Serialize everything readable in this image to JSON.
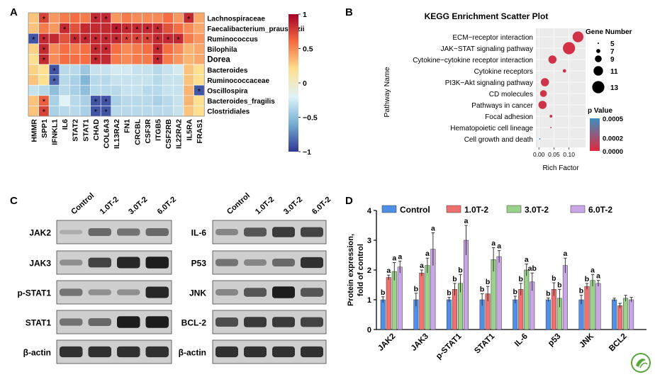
{
  "panel_letters": [
    "A",
    "B",
    "C",
    "D"
  ],
  "chart_data": [
    {
      "type": "heatmap",
      "panel": "A",
      "columns": [
        "HMMR",
        "SPP1",
        "IFNKL1",
        "IL6",
        "STAT2",
        "STAT1",
        "CHAD",
        "COL6A3",
        "IL13RA2",
        "FN1",
        "CRCBL",
        "CSF3R",
        "ITGB5",
        "CSF2RB",
        "IL22RA2",
        "IL5RA",
        "FRAS1"
      ],
      "rows": [
        "Lachnospiraceae",
        "Faecalibacterium_prausnitzii",
        "Ruminococcus",
        "Bilophila",
        "Dorea",
        "Bacteroides",
        "Ruminococcaceae",
        "Oscillospira",
        "Bacteroides_fragilis",
        "Clostridiales"
      ],
      "values": [
        [
          0.3,
          0.75,
          0.45,
          0.55,
          0.6,
          0.55,
          0.85,
          0.85,
          0.45,
          0.55,
          0.5,
          0.5,
          0.5,
          0.6,
          0.45,
          0.85,
          0.4
        ],
        [
          0.3,
          0.55,
          0.45,
          0.85,
          0.7,
          0.85,
          0.85,
          0.85,
          0.9,
          0.85,
          0.85,
          0.85,
          0.85,
          0.7,
          0.6,
          0.5,
          0.4
        ],
        [
          -0.9,
          0.85,
          0.85,
          0.7,
          0.85,
          0.85,
          0.85,
          0.85,
          0.85,
          0.75,
          0.75,
          0.75,
          0.85,
          0.85,
          0.85,
          0.55,
          0.45
        ],
        [
          0.25,
          0.85,
          0.5,
          0.6,
          0.55,
          0.6,
          0.85,
          0.85,
          0.6,
          0.5,
          0.55,
          0.6,
          0.85,
          0.6,
          0.5,
          0.35,
          0.4
        ],
        [
          0.2,
          0.85,
          0.5,
          0.6,
          0.6,
          0.6,
          0.85,
          0.85,
          0.55,
          0.5,
          0.55,
          0.55,
          0.85,
          0.55,
          0.45,
          0.35,
          0.4
        ],
        [
          0.25,
          0.2,
          -0.9,
          -0.35,
          -0.35,
          -0.45,
          -0.3,
          -0.3,
          -0.25,
          -0.25,
          -0.3,
          -0.3,
          -0.35,
          -0.3,
          -0.25,
          0.3,
          0.2
        ],
        [
          0.3,
          0.2,
          -0.85,
          -0.35,
          -0.4,
          -0.55,
          -0.35,
          -0.35,
          -0.3,
          -0.3,
          -0.3,
          -0.3,
          -0.35,
          -0.3,
          -0.3,
          0.3,
          0.2
        ],
        [
          -0.3,
          -0.35,
          -0.5,
          -0.35,
          -0.4,
          -0.5,
          -0.35,
          -0.35,
          -0.35,
          -0.3,
          -0.3,
          -0.35,
          -0.35,
          -0.3,
          -0.3,
          0.35,
          -0.9
        ],
        [
          0.3,
          0.65,
          -0.4,
          -0.2,
          -0.35,
          -0.4,
          -0.9,
          -0.9,
          -0.4,
          -0.35,
          -0.35,
          -0.35,
          -0.4,
          -0.35,
          -0.3,
          0.35,
          0.2
        ],
        [
          0.3,
          0.75,
          -0.4,
          -0.35,
          -0.35,
          -0.4,
          -0.9,
          -0.9,
          -0.35,
          -0.35,
          -0.35,
          -0.35,
          -0.35,
          -0.35,
          -0.3,
          0.3,
          0.2
        ]
      ],
      "significance_marker": "*",
      "significant": [
        [
          0,
          1
        ],
        [
          0,
          6
        ],
        [
          0,
          7
        ],
        [
          0,
          15
        ],
        [
          1,
          3
        ],
        [
          1,
          8
        ],
        [
          1,
          9
        ],
        [
          1,
          10
        ],
        [
          1,
          11
        ],
        [
          1,
          12
        ],
        [
          2,
          0
        ],
        [
          2,
          1
        ],
        [
          2,
          4
        ],
        [
          2,
          5
        ],
        [
          2,
          6
        ],
        [
          2,
          7
        ],
        [
          2,
          8
        ],
        [
          2,
          9
        ],
        [
          2,
          10
        ],
        [
          2,
          11
        ],
        [
          2,
          12
        ],
        [
          2,
          13
        ],
        [
          2,
          14
        ],
        [
          3,
          1
        ],
        [
          3,
          6
        ],
        [
          3,
          7
        ],
        [
          3,
          12
        ],
        [
          4,
          1
        ],
        [
          4,
          6
        ],
        [
          4,
          12
        ],
        [
          5,
          2
        ],
        [
          6,
          2
        ],
        [
          7,
          16
        ],
        [
          8,
          1
        ],
        [
          8,
          6
        ],
        [
          8,
          7
        ],
        [
          9,
          1
        ],
        [
          9,
          6
        ],
        [
          9,
          7
        ]
      ],
      "bold_rows": [
        4
      ],
      "colorbar": {
        "min": -1,
        "max": 1,
        "ticks": [
          1,
          0.5,
          0,
          -0.5,
          -1
        ],
        "tick_labels": [
          "1",
          "0.5",
          "0",
          "−0.5",
          "−1"
        ],
        "colors": [
          "#313695",
          "#74add1",
          "#e0f3f8",
          "#fee090",
          "#f46d43",
          "#a50026"
        ]
      }
    },
    {
      "type": "scatter",
      "panel": "B",
      "title": "KEGG Enrichment Scatter Plot",
      "xlabel": "Rich Factor",
      "ylabel": "Pathway Name",
      "xticks": [
        0.0,
        0.05,
        0.1
      ],
      "xtick_labels": [
        "0.00",
        "0.05",
        "0.10"
      ],
      "xlim": [
        -0.01,
        0.155
      ],
      "highlight_color": "#e3192c",
      "points": [
        {
          "pathway": "ECM−receptor interaction",
          "rich_factor": 0.13,
          "gene_number": 12,
          "p_value": 5e-05
        },
        {
          "pathway": "JAK−STAT signaling pathway",
          "rich_factor": 0.1,
          "gene_number": 13,
          "p_value": 4e-05,
          "highlight": true
        },
        {
          "pathway": "Cytokine−cytokine receptor interaction",
          "rich_factor": 0.045,
          "gene_number": 10,
          "p_value": 5e-05
        },
        {
          "pathway": "Cytokine receptors",
          "rich_factor": 0.085,
          "gene_number": 6.5,
          "p_value": 6e-05
        },
        {
          "pathway": "PI3K−Akt signaling pathway",
          "rich_factor": 0.02,
          "gene_number": 10,
          "p_value": 6e-05
        },
        {
          "pathway": "CD molecules",
          "rich_factor": 0.015,
          "gene_number": 9,
          "p_value": 6e-05
        },
        {
          "pathway": "Pathways in cancer",
          "rich_factor": 0.012,
          "gene_number": 10,
          "p_value": 6e-05
        },
        {
          "pathway": "Focal adhesion",
          "rich_factor": 0.04,
          "gene_number": 6,
          "p_value": 9e-05
        },
        {
          "pathway": "Hematopoietic cell lineage",
          "rich_factor": 0.04,
          "gene_number": 5,
          "p_value": 0.0001
        },
        {
          "pathway": "Cell growth and death",
          "rich_factor": 0.003,
          "gene_number": 5,
          "p_value": 0.0005
        }
      ],
      "size_legend": {
        "title": "Gene Number",
        "values": [
          5,
          7,
          9,
          11,
          13
        ],
        "labels": [
          "5",
          "7",
          "9",
          "11",
          "13"
        ]
      },
      "color_legend": {
        "title": "p Value",
        "ticks": [
          0.0005,
          0.0002,
          0.0
        ],
        "tick_labels": [
          "0.0005",
          "0.0002",
          "0.0000"
        ],
        "min": 0,
        "max": 0.0005,
        "low_color": "#e0283c",
        "high_color": "#3e8fc0"
      }
    },
    {
      "type": "table",
      "panel": "C",
      "blots": {
        "left": {
          "lanes": [
            "Control",
            "1.0T-2",
            "3.0T-2",
            "6.0T-2"
          ],
          "proteins": [
            "JAK2",
            "JAK3",
            "p-STAT1",
            "STAT1",
            "β-actin"
          ],
          "intensity": [
            [
              0.15,
              0.5,
              0.45,
              0.5
            ],
            [
              0.3,
              0.7,
              0.85,
              0.9
            ],
            [
              0.45,
              0.3,
              0.3,
              0.85
            ],
            [
              0.45,
              0.5,
              0.9,
              0.9
            ],
            [
              0.8,
              0.8,
              0.8,
              0.8
            ]
          ]
        },
        "right": {
          "lanes": [
            "Control",
            "1.0T-2",
            "3.0T-2",
            "6.0T-2"
          ],
          "proteins": [
            "IL-6",
            "P53",
            "JNK",
            "BCL-2",
            "β-actin"
          ],
          "intensity": [
            [
              0.35,
              0.6,
              0.75,
              0.7
            ],
            [
              0.45,
              0.35,
              0.5,
              0.8
            ],
            [
              0.35,
              0.6,
              0.9,
              0.6
            ],
            [
              0.65,
              0.75,
              0.75,
              0.7
            ],
            [
              0.8,
              0.8,
              0.8,
              0.8
            ]
          ]
        }
      }
    },
    {
      "type": "bar",
      "panel": "D",
      "ylabel": "Protein expression,\nfold of control",
      "ylim": [
        0,
        4
      ],
      "yticks": [
        0,
        1,
        2,
        3,
        4
      ],
      "categories": [
        "JAK2",
        "JAK3",
        "p-STAT1",
        "STAT1",
        "IL-6",
        "p53",
        "JNK",
        "BCL2"
      ],
      "series": [
        {
          "name": "Control",
          "color": "#4f8fe8",
          "values": [
            1.0,
            1.0,
            1.0,
            1.0,
            1.0,
            1.0,
            1.0,
            1.0
          ],
          "errors": [
            0.1,
            0.22,
            0.08,
            0.2,
            0.12,
            0.06,
            0.15,
            0.05
          ],
          "labels": [
            "b",
            "b",
            "b",
            "b",
            "b",
            "b",
            "b",
            ""
          ]
        },
        {
          "name": "1.0T-2",
          "color": "#f07070",
          "values": [
            1.75,
            1.9,
            1.35,
            1.2,
            1.35,
            1.35,
            1.45,
            0.8
          ],
          "errors": [
            0.08,
            0.1,
            0.2,
            0.25,
            0.2,
            0.22,
            0.1,
            0.08
          ],
          "labels": [
            "a",
            "a",
            "b",
            "b",
            "b",
            "b",
            "b",
            ""
          ]
        },
        {
          "name": "3.0T-2",
          "color": "#9ad18b",
          "values": [
            1.95,
            2.15,
            1.55,
            2.35,
            2.0,
            1.05,
            1.65,
            1.05
          ],
          "errors": [
            0.3,
            0.25,
            0.3,
            0.4,
            0.2,
            0.3,
            0.2,
            0.1
          ],
          "labels": [
            "a",
            "a",
            "b",
            "a",
            "a",
            "b",
            "a",
            ""
          ]
        },
        {
          "name": "6.0T-2",
          "color": "#c9a6e6",
          "values": [
            2.1,
            2.7,
            3.0,
            2.45,
            1.6,
            2.15,
            1.55,
            1.0
          ],
          "errors": [
            0.2,
            0.55,
            0.5,
            0.2,
            0.3,
            0.25,
            0.1,
            0.08
          ],
          "labels": [
            "a",
            "a",
            "a",
            "a",
            "ab",
            "a",
            "a",
            ""
          ]
        }
      ]
    }
  ],
  "legend_position_D": "top"
}
